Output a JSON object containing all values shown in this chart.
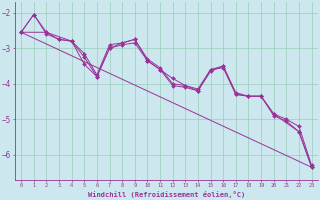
{
  "xlabel": "Windchill (Refroidissement éolien,°C)",
  "bg_color": "#cce8ee",
  "grid_color": "#99ccbb",
  "line_color": "#993399",
  "marker_color": "#993399",
  "xlim": [
    -0.5,
    23.5
  ],
  "ylim": [
    -6.7,
    -1.7
  ],
  "yticks": [
    -6,
    -5,
    -4,
    -3,
    -2
  ],
  "xticks": [
    0,
    1,
    2,
    3,
    4,
    5,
    6,
    7,
    8,
    9,
    10,
    11,
    12,
    13,
    14,
    15,
    16,
    17,
    18,
    19,
    20,
    21,
    22,
    23
  ],
  "series1": [
    [
      0,
      -2.55
    ],
    [
      1,
      -2.05
    ],
    [
      2,
      -2.6
    ],
    [
      3,
      -2.75
    ],
    [
      4,
      -2.8
    ],
    [
      5,
      -3.15
    ],
    [
      6,
      -3.75
    ],
    [
      7,
      -2.9
    ],
    [
      8,
      -2.85
    ],
    [
      9,
      -2.75
    ],
    [
      10,
      -3.3
    ],
    [
      11,
      -3.55
    ],
    [
      12,
      -4.0
    ],
    [
      13,
      -4.05
    ],
    [
      14,
      -4.15
    ],
    [
      15,
      -3.6
    ],
    [
      16,
      -3.5
    ],
    [
      17,
      -4.25
    ],
    [
      18,
      -4.35
    ],
    [
      19,
      -4.35
    ],
    [
      20,
      -4.85
    ],
    [
      21,
      -5.0
    ],
    [
      22,
      -5.2
    ],
    [
      23,
      -6.3
    ]
  ],
  "series2": [
    [
      0,
      -2.55
    ],
    [
      1,
      -2.05
    ],
    [
      2,
      -2.55
    ],
    [
      3,
      -2.75
    ],
    [
      4,
      -2.8
    ],
    [
      5,
      -3.45
    ],
    [
      6,
      -3.8
    ],
    [
      7,
      -3.0
    ],
    [
      8,
      -2.85
    ],
    [
      9,
      -2.75
    ],
    [
      10,
      -3.35
    ],
    [
      11,
      -3.6
    ],
    [
      12,
      -4.05
    ],
    [
      13,
      -4.1
    ],
    [
      14,
      -4.2
    ],
    [
      15,
      -3.6
    ],
    [
      16,
      -3.55
    ],
    [
      17,
      -4.3
    ],
    [
      18,
      -4.35
    ],
    [
      19,
      -4.35
    ],
    [
      20,
      -4.9
    ],
    [
      21,
      -5.05
    ],
    [
      22,
      -5.35
    ],
    [
      23,
      -6.35
    ]
  ],
  "series3": [
    [
      0,
      -2.55
    ],
    [
      2,
      -2.55
    ],
    [
      4,
      -2.8
    ],
    [
      5,
      -3.25
    ],
    [
      6,
      -3.8
    ],
    [
      7,
      -3.0
    ],
    [
      8,
      -2.9
    ],
    [
      9,
      -2.85
    ],
    [
      10,
      -3.35
    ],
    [
      11,
      -3.6
    ],
    [
      12,
      -3.85
    ],
    [
      13,
      -4.05
    ],
    [
      14,
      -4.2
    ],
    [
      15,
      -3.65
    ],
    [
      16,
      -3.5
    ],
    [
      17,
      -4.3
    ],
    [
      18,
      -4.35
    ],
    [
      19,
      -4.35
    ],
    [
      20,
      -4.85
    ],
    [
      22,
      -5.35
    ],
    [
      23,
      -6.35
    ]
  ],
  "series4_straight": [
    [
      0,
      -2.55
    ],
    [
      23,
      -6.35
    ]
  ]
}
